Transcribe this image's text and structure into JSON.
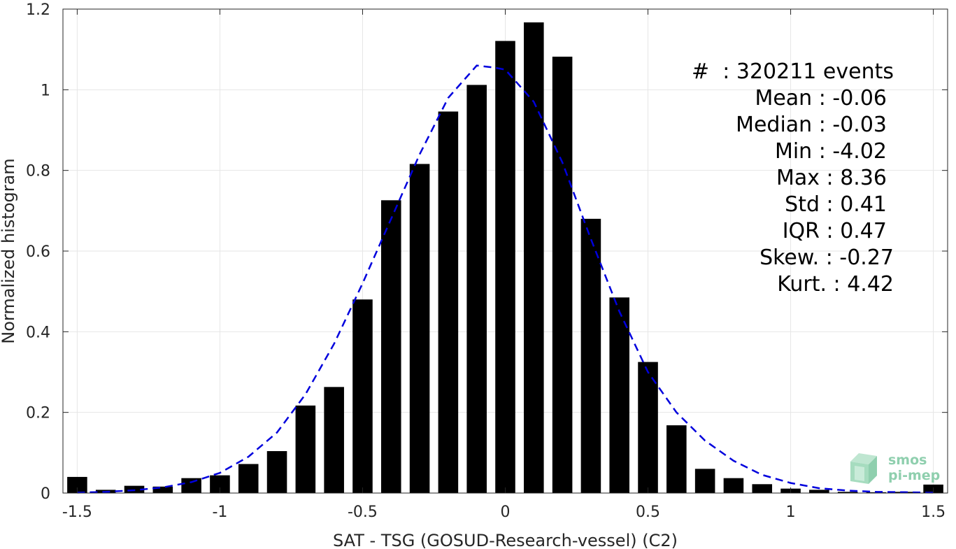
{
  "chart_data": {
    "type": "bar",
    "xlabel": "SAT - TSG (GOSUD-Research-vessel) (C2)",
    "ylabel": "Normalized histogram",
    "xlim": [
      -1.55,
      1.55
    ],
    "ylim": [
      0,
      1.2
    ],
    "x_ticks": [
      -1.5,
      -1,
      -0.5,
      0,
      0.5,
      1,
      1.5
    ],
    "x_tick_labels": [
      "-1.5",
      "-1",
      "-0.5",
      "0",
      "0.5",
      "1",
      "1.5"
    ],
    "y_ticks": [
      0,
      0.2,
      0.4,
      0.6,
      0.8,
      1,
      1.2
    ],
    "y_tick_labels": [
      "0",
      "0.2",
      "0.4",
      "0.6",
      "0.8",
      "1",
      "1.2"
    ],
    "grid": true,
    "bins": {
      "name": "histogram",
      "color": "#000000",
      "x": [
        -1.5,
        -1.4,
        -1.3,
        -1.2,
        -1.1,
        -1.0,
        -0.9,
        -0.8,
        -0.7,
        -0.6,
        -0.5,
        -0.4,
        -0.3,
        -0.2,
        -0.1,
        0.0,
        0.1,
        0.2,
        0.3,
        0.4,
        0.5,
        0.6,
        0.7,
        0.8,
        0.9,
        1.0,
        1.1,
        1.2,
        1.3,
        1.4,
        1.5
      ],
      "values": [
        0.04,
        0.008,
        0.018,
        0.016,
        0.037,
        0.044,
        0.072,
        0.104,
        0.217,
        0.263,
        0.48,
        0.726,
        0.816,
        0.946,
        1.012,
        1.121,
        1.167,
        1.082,
        0.68,
        0.485,
        0.325,
        0.168,
        0.06,
        0.037,
        0.022,
        0.011,
        0.008,
        0.003,
        0.002,
        0.003,
        0.021
      ]
    },
    "fit_curve": {
      "name": "gaussian-fit",
      "style": "dashed",
      "color": "#0000dd",
      "x": [
        -1.5,
        -1.4,
        -1.3,
        -1.2,
        -1.1,
        -1.0,
        -0.9,
        -0.8,
        -0.7,
        -0.6,
        -0.5,
        -0.4,
        -0.3,
        -0.2,
        -0.1,
        -0.04,
        0.0,
        0.1,
        0.2,
        0.3,
        0.4,
        0.5,
        0.6,
        0.7,
        0.8,
        0.9,
        1.0,
        1.1,
        1.2,
        1.3,
        1.4,
        1.5
      ],
      "y": [
        0.001,
        0.003,
        0.007,
        0.014,
        0.027,
        0.05,
        0.09,
        0.15,
        0.245,
        0.37,
        0.52,
        0.68,
        0.84,
        0.98,
        1.06,
        1.055,
        1.05,
        0.97,
        0.82,
        0.63,
        0.45,
        0.3,
        0.2,
        0.13,
        0.08,
        0.045,
        0.025,
        0.012,
        0.006,
        0.003,
        0.002,
        0.001
      ]
    }
  },
  "stats": [
    "#  : 320211 events",
    "Mean : -0.06",
    "Median : -0.03",
    "Min : -4.02",
    "Max : 8.36",
    "Std : 0.41",
    "IQR : 0.47",
    "Skew. : -0.27",
    "Kurt. : 4.42"
  ],
  "logo": {
    "line1": "smos",
    "line2": "pi-mep",
    "color": "#8fcfae"
  }
}
